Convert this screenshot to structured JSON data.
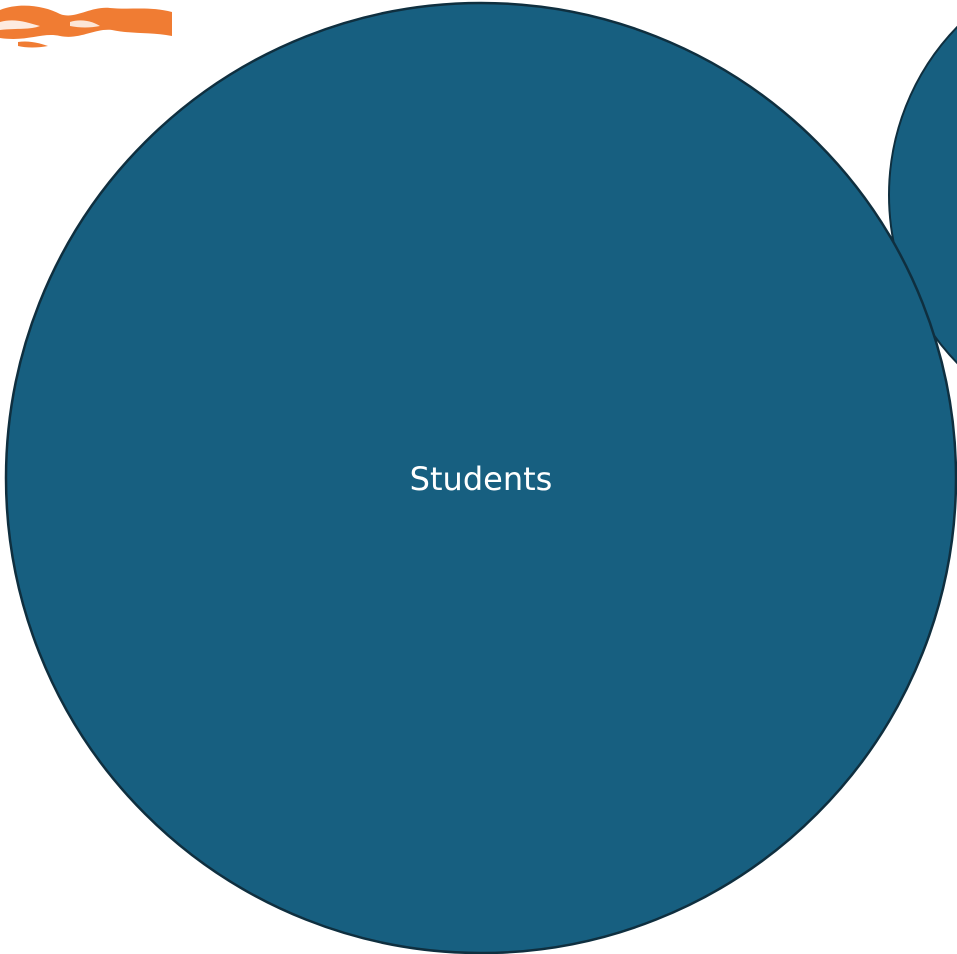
{
  "diagram": {
    "nodes": [
      {
        "id": "students",
        "label": "Students",
        "fill": "#175F80",
        "stroke": "#0F2F3F"
      },
      {
        "id": "partial-right",
        "label": "",
        "fill": "#175F80",
        "stroke": "#0F2F3F"
      }
    ],
    "decoration": {
      "name": "orange-brush-stroke",
      "color": "#F07C33"
    }
  }
}
